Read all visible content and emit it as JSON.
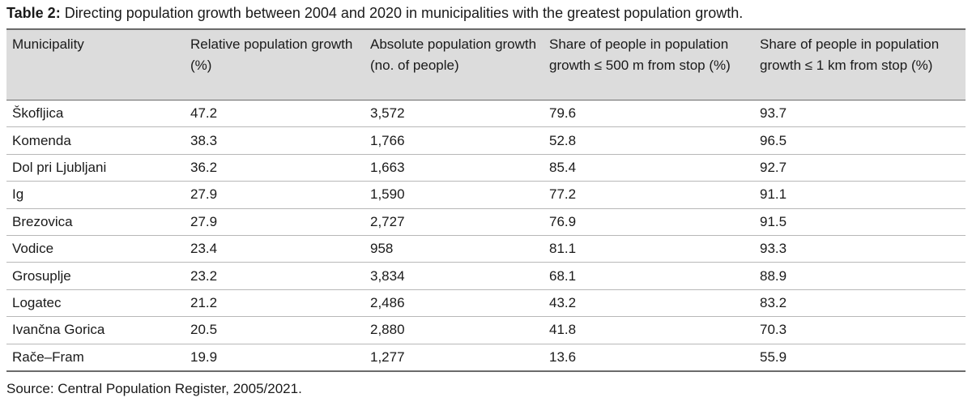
{
  "caption": {
    "lead": "Table 2:",
    "text": " Directing population growth between 2004 and 2020 in municipalities with the greatest population growth."
  },
  "table": {
    "headers": [
      "Municipality",
      "Relative population growth (%)",
      "Absolute population growth (no. of people)",
      "Share of people in population growth ≤ 500 m from stop (%)",
      "Share of people in population growth ≤ 1 km from stop (%)"
    ],
    "rows": [
      [
        "Škofljica",
        "47.2",
        "3,572",
        "79.6",
        "93.7"
      ],
      [
        "Komenda",
        "38.3",
        "1,766",
        "52.8",
        "96.5"
      ],
      [
        "Dol pri Ljubljani",
        "36.2",
        "1,663",
        "85.4",
        "92.7"
      ],
      [
        "Ig",
        "27.9",
        "1,590",
        "77.2",
        "91.1"
      ],
      [
        "Brezovica",
        "27.9",
        "2,727",
        "76.9",
        "91.5"
      ],
      [
        "Vodice",
        "23.4",
        "958",
        "81.1",
        "93.3"
      ],
      [
        "Grosuplje",
        "23.2",
        "3,834",
        "68.1",
        "88.9"
      ],
      [
        "Logatec",
        "21.2",
        "2,486",
        "43.2",
        "83.2"
      ],
      [
        "Ivančna Gorica",
        "20.5",
        "2,880",
        "41.8",
        "70.3"
      ],
      [
        "Rače–Fram",
        "19.9",
        "1,277",
        "13.6",
        "55.9"
      ]
    ]
  },
  "source": "Source: Central Population Register, 2005/2021."
}
